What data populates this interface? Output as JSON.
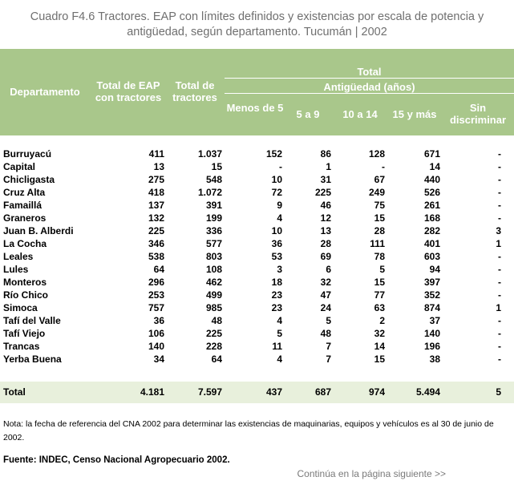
{
  "title": {
    "line1": "Cuadro F4.6  Tractores. EAP con límites definidos  y existencias por escala de potencia y",
    "line2": "antigüedad, según departamento. Tucumán | 2002"
  },
  "headers": {
    "departamento": "Departamento",
    "total_eap": "Total de EAP con tractores",
    "total_tractores": "Total de tractores",
    "total": "Total",
    "antiguedad": "Antigüedad (años)",
    "menos5": "Menos de 5",
    "a5_9": "5 a 9",
    "a10_14": "10 a 14",
    "a15": "15 y más",
    "sin": "Sin discriminar"
  },
  "rows": [
    {
      "dep": "Burruyacú",
      "eap": "411",
      "trac": "1.037",
      "m5": "152",
      "c5": "86",
      "c10": "128",
      "c15": "671",
      "sin": "-"
    },
    {
      "dep": "Capital",
      "eap": "13",
      "trac": "15",
      "m5": "-",
      "c5": "1",
      "c10": "-",
      "c15": "14",
      "sin": "-"
    },
    {
      "dep": "Chicligasta",
      "eap": "275",
      "trac": "548",
      "m5": "10",
      "c5": "31",
      "c10": "67",
      "c15": "440",
      "sin": "-"
    },
    {
      "dep": "Cruz Alta",
      "eap": "418",
      "trac": "1.072",
      "m5": "72",
      "c5": "225",
      "c10": "249",
      "c15": "526",
      "sin": "-"
    },
    {
      "dep": "Famaillá",
      "eap": "137",
      "trac": "391",
      "m5": "9",
      "c5": "46",
      "c10": "75",
      "c15": "261",
      "sin": "-"
    },
    {
      "dep": "Graneros",
      "eap": "132",
      "trac": "199",
      "m5": "4",
      "c5": "12",
      "c10": "15",
      "c15": "168",
      "sin": "-"
    },
    {
      "dep": "Juan B. Alberdi",
      "eap": "225",
      "trac": "336",
      "m5": "10",
      "c5": "13",
      "c10": "28",
      "c15": "282",
      "sin": "3"
    },
    {
      "dep": "La Cocha",
      "eap": "346",
      "trac": "577",
      "m5": "36",
      "c5": "28",
      "c10": "111",
      "c15": "401",
      "sin": "1"
    },
    {
      "dep": "Leales",
      "eap": "538",
      "trac": "803",
      "m5": "53",
      "c5": "69",
      "c10": "78",
      "c15": "603",
      "sin": "-"
    },
    {
      "dep": "Lules",
      "eap": "64",
      "trac": "108",
      "m5": "3",
      "c5": "6",
      "c10": "5",
      "c15": "94",
      "sin": "-"
    },
    {
      "dep": "Monteros",
      "eap": "296",
      "trac": "462",
      "m5": "18",
      "c5": "32",
      "c10": "15",
      "c15": "397",
      "sin": "-"
    },
    {
      "dep": "Río Chico",
      "eap": "253",
      "trac": "499",
      "m5": "23",
      "c5": "47",
      "c10": "77",
      "c15": "352",
      "sin": "-"
    },
    {
      "dep": "Simoca",
      "eap": "757",
      "trac": "985",
      "m5": "23",
      "c5": "24",
      "c10": "63",
      "c15": "874",
      "sin": "1"
    },
    {
      "dep": "Tafí del Valle",
      "eap": "36",
      "trac": "48",
      "m5": "4",
      "c5": "5",
      "c10": "2",
      "c15": "37",
      "sin": "-"
    },
    {
      "dep": "Tafí Viejo",
      "eap": "106",
      "trac": "225",
      "m5": "5",
      "c5": "48",
      "c10": "32",
      "c15": "140",
      "sin": "-"
    },
    {
      "dep": "Trancas",
      "eap": "140",
      "trac": "228",
      "m5": "11",
      "c5": "7",
      "c10": "14",
      "c15": "196",
      "sin": "-"
    },
    {
      "dep": "Yerba Buena",
      "eap": "34",
      "trac": "64",
      "m5": "4",
      "c5": "7",
      "c10": "15",
      "c15": "38",
      "sin": "-"
    }
  ],
  "total_row": {
    "dep": "Total",
    "eap": "4.181",
    "trac": "7.597",
    "m5": "437",
    "c5": "687",
    "c10": "974",
    "c15": "5.494",
    "sin": "5"
  },
  "note": "Nota: la fecha de referencia del CNA 2002 para determinar las existencias de maquinarias, equipos y vehículos es al 30 de junio de 2002.",
  "source": "Fuente: INDEC, Censo Nacional Agropecuario 2002.",
  "continue": "Continúa en la página siguiente >>"
}
